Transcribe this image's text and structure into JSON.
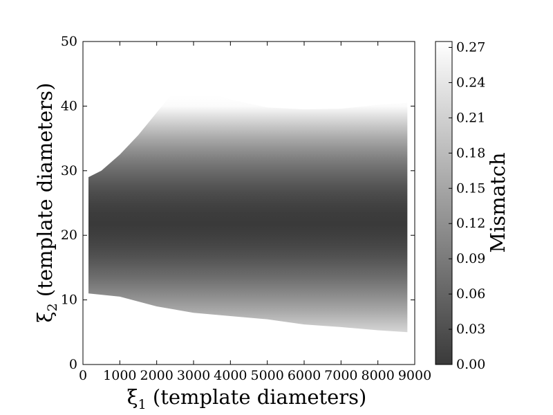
{
  "chart_data": {
    "type": "heatmap",
    "title": "",
    "xlabel": {
      "symbol": "ξ",
      "subscript": "1",
      "text": " (template diameters)"
    },
    "ylabel": {
      "symbol": "ξ",
      "subscript": "2",
      "text": " (template diameters)"
    },
    "xlim": [
      0,
      9000
    ],
    "ylim": [
      0,
      50
    ],
    "xticks": [
      "0",
      "1000",
      "2000",
      "3000",
      "4000",
      "5000",
      "6000",
      "7000",
      "8000",
      "9000"
    ],
    "yticks": [
      "0",
      "10",
      "20",
      "30",
      "40",
      "50"
    ],
    "grid": false,
    "colorbar": {
      "label": "Mismatch",
      "range": [
        0,
        0.275
      ],
      "ticks": [
        "0.00",
        "0.03",
        "0.06",
        "0.09",
        "0.12",
        "0.15",
        "0.18",
        "0.21",
        "0.24",
        "0.27"
      ],
      "colormap": [
        "#3a3a3a",
        "#ffffff"
      ]
    },
    "region_upper_boundary": [
      [
        150,
        29
      ],
      [
        500,
        30
      ],
      [
        1000,
        32.5
      ],
      [
        1500,
        35.5
      ],
      [
        2000,
        39
      ],
      [
        2500,
        42.5
      ],
      [
        2800,
        45
      ],
      [
        3000,
        44
      ],
      [
        3500,
        42
      ],
      [
        4000,
        41
      ],
      [
        5000,
        39.8
      ],
      [
        6000,
        39.5
      ],
      [
        7000,
        39.6
      ],
      [
        8000,
        40.2
      ],
      [
        8800,
        40.5
      ]
    ],
    "region_lower_boundary": [
      [
        150,
        11
      ],
      [
        1000,
        10.5
      ],
      [
        2000,
        9
      ],
      [
        3000,
        8
      ],
      [
        4000,
        7.5
      ],
      [
        5000,
        7
      ],
      [
        6000,
        6.2
      ],
      [
        7000,
        5.8
      ],
      [
        8000,
        5.3
      ],
      [
        8800,
        5
      ]
    ],
    "min_mismatch_y": 22,
    "mismatch_at_upper_edge": 0.27,
    "mismatch_at_lower_edge": 0.16
  }
}
